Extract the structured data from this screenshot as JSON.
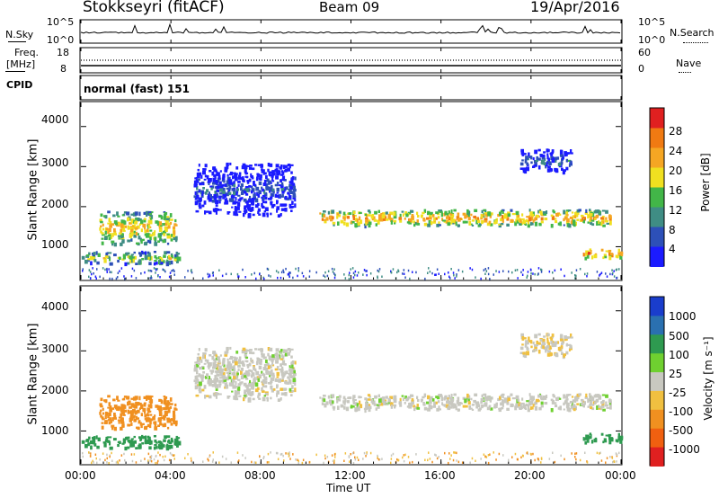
{
  "header": {
    "station": "Stokkseyri (fitACF)",
    "beam": "Beam 09",
    "date": "19/Apr/2016"
  },
  "noise_panel": {
    "left_label": "N.Sky",
    "right_label": "N.Search",
    "left_ticks": [
      "10^5",
      "10^0"
    ],
    "right_ticks": [
      "10^5",
      "10^0"
    ]
  },
  "freq_panel": {
    "left_label_top": "Freq.",
    "left_label_unit": "[MHz]",
    "left_ticks": [
      "18",
      "8"
    ],
    "right_label": "Nave",
    "right_ticks": [
      "60",
      "0"
    ]
  },
  "cpid": {
    "label": "CPID",
    "mode": "normal (fast) 151"
  },
  "x_axis": {
    "label": "Time UT",
    "ticks": [
      "00:00",
      "04:00",
      "08:00",
      "12:00",
      "16:00",
      "20:00",
      "00:00"
    ]
  },
  "power_panel": {
    "ylabel": "Slant Range [km]",
    "yticks": [
      "4000",
      "3000",
      "2000",
      "1000"
    ],
    "colorbar_label": "Power [dB]",
    "colorbar_ticks": [
      "28",
      "24",
      "20",
      "16",
      "12",
      "8",
      "4"
    ]
  },
  "velocity_panel": {
    "ylabel": "Slant Range [km]",
    "yticks": [
      "4000",
      "3000",
      "2000",
      "1000"
    ],
    "colorbar_label": "Velocity  [m s⁻¹]",
    "colorbar_ticks": [
      "1000",
      "500",
      "100",
      "25",
      "-25",
      "-100",
      "-500",
      "-1000"
    ]
  },
  "chart_data": {
    "type": "heatmap",
    "title": "Stokkseyri (fitACF)  Beam 09  19/Apr/2016",
    "xlabel": "Time UT",
    "xlim_hours": [
      0,
      24
    ],
    "ylim_km": [
      180,
      4600
    ],
    "power_scale_db": [
      0,
      30
    ],
    "velocity_scale_ms": [
      -1000,
      1000
    ],
    "power_colors": [
      "#1b1bff",
      "#2d50b8",
      "#3f8d84",
      "#42b648",
      "#f0e020",
      "#f5a623",
      "#f07a12",
      "#e02020"
    ],
    "velocity_colors": [
      "#1a3dcc",
      "#2a70b0",
      "#2e9a50",
      "#6fd030",
      "#c8c8c0",
      "#f0c040",
      "#f09020",
      "#f06010",
      "#e02020"
    ],
    "scatter_regions": [
      {
        "t_start": 0.8,
        "t_end": 4.2,
        "range_km": [
          1100,
          1900
        ],
        "power_db": 20,
        "velocity_ms": -200
      },
      {
        "t_start": 0.0,
        "t_end": 4.4,
        "range_km": [
          600,
          900
        ],
        "power_db": 16,
        "velocity_ms": 150
      },
      {
        "t_start": 10.5,
        "t_end": 23.5,
        "range_km": [
          1550,
          1950
        ],
        "power_db": 22,
        "velocity_ms": 0
      },
      {
        "t_start": 19.5,
        "t_end": 21.8,
        "range_km": [
          2900,
          3450
        ],
        "power_db": 8,
        "velocity_ms": -20
      },
      {
        "t_start": 22.3,
        "t_end": 24.0,
        "range_km": [
          750,
          1000
        ],
        "power_db": 24,
        "velocity_ms": 300
      },
      {
        "t_start": 5.0,
        "t_end": 9.5,
        "range_km": [
          1800,
          3100
        ],
        "power_db": 6,
        "velocity_ms": 0
      }
    ]
  }
}
